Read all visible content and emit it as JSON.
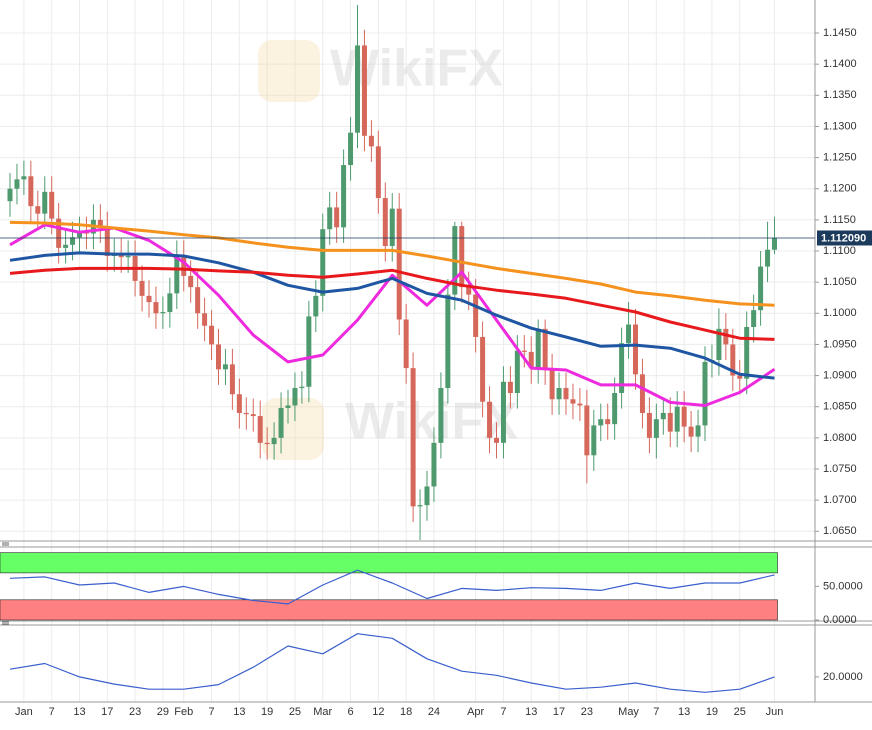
{
  "watermark": "WikiFX",
  "chart_data": [
    {
      "type": "candlestick",
      "categories": [
        "Dec 30",
        "Dec 31",
        "Jan 1",
        "Jan 2",
        "Jan 3",
        "Jan 6",
        "Jan 7",
        "Jan 8",
        "Jan 9",
        "Jan 10",
        "Jan 13",
        "Jan 14",
        "Jan 15",
        "Jan 16",
        "Jan 17",
        "Jan 20",
        "Jan 21",
        "Jan 22",
        "Jan 23",
        "Jan 24",
        "Jan 27",
        "Jan 28",
        "Jan 29",
        "Jan 30",
        "Jan 31",
        "Feb 3",
        "Feb 4",
        "Feb 5",
        "Feb 6",
        "Feb 7",
        "Feb 10",
        "Feb 11",
        "Feb 12",
        "Feb 13",
        "Feb 14",
        "Feb 17",
        "Feb 18",
        "Feb 19",
        "Feb 20",
        "Feb 21",
        "Feb 24",
        "Feb 25",
        "Feb 26",
        "Feb 27",
        "Feb 28",
        "Mar 2",
        "Mar 3",
        "Mar 4",
        "Mar 5",
        "Mar 6",
        "Mar 9",
        "Mar 10",
        "Mar 11",
        "Mar 12",
        "Mar 13",
        "Mar 16",
        "Mar 17",
        "Mar 18",
        "Mar 19",
        "Mar 20",
        "Mar 23",
        "Mar 24",
        "Mar 25",
        "Mar 26",
        "Mar 27",
        "Mar 30",
        "Mar 31",
        "Apr 1",
        "Apr 2",
        "Apr 3",
        "Apr 6",
        "Apr 7",
        "Apr 8",
        "Apr 9",
        "Apr 10",
        "Apr 13",
        "Apr 14",
        "Apr 15",
        "Apr 16",
        "Apr 17",
        "Apr 20",
        "Apr 21",
        "Apr 22",
        "Apr 23",
        "Apr 24",
        "Apr 27",
        "Apr 28",
        "Apr 29",
        "Apr 30",
        "May 1",
        "May 4",
        "May 5",
        "May 6",
        "May 7",
        "May 8",
        "May 11",
        "May 12",
        "May 13",
        "May 14",
        "May 15",
        "May 18",
        "May 19",
        "May 20",
        "May 21",
        "May 22",
        "May 25",
        "May 26",
        "May 27",
        "May 28",
        "May 29",
        "Jun 1"
      ],
      "open": [
        1.118,
        1.12,
        1.1215,
        1.122,
        1.1172,
        1.116,
        1.1195,
        1.1152,
        1.1105,
        1.111,
        1.1122,
        1.113,
        1.1128,
        1.115,
        1.1138,
        1.1092,
        1.1095,
        1.109,
        1.1092,
        1.1052,
        1.1028,
        1.1018,
        1.1,
        1.1002,
        1.1032,
        1.1092,
        1.106,
        1.1042,
        1.1,
        1.098,
        1.095,
        1.091,
        1.0918,
        1.087,
        1.084,
        1.0838,
        1.0835,
        1.0792,
        1.079,
        1.08,
        1.0848,
        1.0852,
        1.088,
        1.0882,
        1.0995,
        1.1028,
        1.1135,
        1.117,
        1.1138,
        1.1238,
        1.129,
        1.143,
        1.1285,
        1.1268,
        1.1185,
        1.1108,
        1.1168,
        1.099,
        1.0912,
        1.069,
        1.0692,
        1.0722,
        1.0792,
        1.088,
        1.103,
        1.114,
        1.1042,
        1.103,
        1.0962,
        1.0858,
        1.08,
        1.0792,
        1.089,
        1.0872,
        1.094,
        1.0938,
        1.0912,
        1.0975,
        1.091,
        1.0862,
        1.088,
        1.0862,
        1.0855,
        1.0852,
        1.0772,
        1.082,
        1.083,
        1.0822,
        1.0872,
        1.0952,
        1.0982,
        1.0902,
        1.084,
        1.08,
        1.083,
        1.084,
        1.081,
        1.085,
        1.0818,
        1.0802,
        1.082,
        1.0922,
        1.0925,
        1.0975,
        1.095,
        1.09,
        1.0895,
        1.0978,
        1.1005,
        1.1075,
        1.1102
      ],
      "high": [
        1.1225,
        1.124,
        1.1245,
        1.1245,
        1.1197,
        1.122,
        1.122,
        1.1177,
        1.1135,
        1.1147,
        1.1155,
        1.1155,
        1.1175,
        1.1175,
        1.1163,
        1.112,
        1.112,
        1.1117,
        1.1117,
        1.1077,
        1.1053,
        1.1043,
        1.1027,
        1.1057,
        1.1117,
        1.1117,
        1.1085,
        1.1067,
        1.1025,
        1.1005,
        1.0975,
        1.0943,
        1.0943,
        1.0895,
        1.0865,
        1.0863,
        1.086,
        1.0817,
        1.0825,
        1.0873,
        1.0877,
        1.0905,
        1.0907,
        1.102,
        1.1053,
        1.116,
        1.1195,
        1.1195,
        1.1263,
        1.1315,
        1.1495,
        1.1455,
        1.131,
        1.1293,
        1.121,
        1.1193,
        1.1193,
        1.1015,
        1.0937,
        1.0717,
        1.0747,
        1.0817,
        1.0905,
        1.1055,
        1.1147,
        1.1147,
        1.1067,
        1.1055,
        1.0987,
        1.0883,
        1.0825,
        1.0915,
        1.0915,
        1.0965,
        1.0965,
        1.0963,
        1.099,
        1.099,
        1.0935,
        1.0905,
        1.0905,
        1.0887,
        1.088,
        1.0877,
        1.0845,
        1.0855,
        1.0855,
        1.0897,
        1.0977,
        1.1018,
        1.1007,
        1.0927,
        1.0865,
        1.0855,
        1.0865,
        1.0865,
        1.0875,
        1.0875,
        1.0843,
        1.0845,
        1.0947,
        1.095,
        1.1008,
        1.1,
        1.0975,
        1.0925,
        1.1003,
        1.103,
        1.11,
        1.1147,
        1.1155
      ],
      "low": [
        1.1155,
        1.1175,
        1.119,
        1.1147,
        1.1135,
        1.1135,
        1.1127,
        1.108,
        1.108,
        1.1085,
        1.1097,
        1.1103,
        1.1103,
        1.1113,
        1.1067,
        1.1067,
        1.1065,
        1.1065,
        1.1027,
        1.1003,
        1.0993,
        1.0975,
        1.0975,
        1.0977,
        1.1007,
        1.1035,
        1.1017,
        1.0975,
        1.0955,
        1.0925,
        1.0885,
        1.0885,
        1.0845,
        1.0815,
        1.0813,
        1.081,
        1.0767,
        1.0765,
        1.0765,
        1.0775,
        1.0823,
        1.0827,
        1.0855,
        1.0857,
        1.097,
        1.1003,
        1.111,
        1.1113,
        1.1113,
        1.1213,
        1.1265,
        1.126,
        1.1243,
        1.116,
        1.1083,
        1.1083,
        1.0965,
        1.0887,
        1.0665,
        1.0636,
        1.0667,
        1.0697,
        1.0767,
        1.0855,
        1.1005,
        1.1017,
        1.1005,
        1.0937,
        1.0833,
        1.0775,
        1.0767,
        1.0767,
        1.0847,
        1.0847,
        1.0913,
        1.0887,
        1.0887,
        1.0885,
        1.0837,
        1.0837,
        1.0837,
        1.083,
        1.0827,
        1.0727,
        1.0747,
        1.0795,
        1.0797,
        1.0797,
        1.0847,
        1.0927,
        1.0877,
        1.0815,
        1.0775,
        1.0767,
        1.0805,
        1.0785,
        1.0785,
        1.0793,
        1.0777,
        1.0777,
        1.0795,
        1.0897,
        1.09,
        1.0925,
        1.0875,
        1.087,
        1.087,
        1.0953,
        1.098,
        1.105,
        1.1095
      ],
      "close": [
        1.12,
        1.1215,
        1.122,
        1.1172,
        1.116,
        1.1195,
        1.1152,
        1.1105,
        1.111,
        1.1122,
        1.113,
        1.1128,
        1.115,
        1.1138,
        1.1092,
        1.1095,
        1.109,
        1.1092,
        1.1052,
        1.1028,
        1.1018,
        1.1,
        1.1002,
        1.1032,
        1.1092,
        1.106,
        1.1042,
        1.1,
        1.098,
        1.095,
        1.091,
        1.0918,
        1.087,
        1.084,
        1.0838,
        1.0835,
        1.0792,
        1.079,
        1.08,
        1.0848,
        1.0852,
        1.088,
        1.0882,
        1.0995,
        1.1028,
        1.1135,
        1.117,
        1.1138,
        1.1238,
        1.129,
        1.143,
        1.1285,
        1.1268,
        1.1185,
        1.1108,
        1.1168,
        1.099,
        1.0912,
        1.069,
        1.0692,
        1.0722,
        1.0792,
        1.088,
        1.103,
        1.114,
        1.1042,
        1.103,
        1.0962,
        1.0858,
        1.08,
        1.0792,
        1.089,
        1.0872,
        1.094,
        1.0938,
        1.0912,
        1.0975,
        1.091,
        1.0862,
        1.088,
        1.0862,
        1.0855,
        1.0852,
        1.0772,
        1.082,
        1.083,
        1.0822,
        1.0872,
        1.0952,
        1.0982,
        1.0902,
        1.084,
        1.08,
        1.083,
        1.084,
        1.081,
        1.085,
        1.0818,
        1.0802,
        1.082,
        1.0922,
        1.0925,
        1.0975,
        1.095,
        1.09,
        1.0895,
        1.0978,
        1.1005,
        1.1075,
        1.1102,
        1.1121
      ],
      "up_color": "#4e9a6e",
      "down_color": "#d5685b",
      "series": [
        {
          "color": "#ee2ade",
          "x": [
            "Dec 30",
            "Jan 6",
            "Jan 13",
            "Jan 20",
            "Jan 27",
            "Feb 3",
            "Feb 10",
            "Feb 17",
            "Feb 24",
            "Mar 2",
            "Mar 9",
            "Mar 16",
            "Mar 23",
            "Mar 30",
            "Apr 6",
            "Apr 13",
            "Apr 20",
            "Apr 27",
            "May 4",
            "May 11",
            "May 18",
            "May 25",
            "Jun 1"
          ],
          "values": [
            1.111,
            1.1142,
            1.113,
            1.1137,
            1.1117,
            1.1082,
            1.1029,
            1.0965,
            1.0922,
            1.0933,
            1.0989,
            1.1061,
            1.1013,
            1.1066,
            1.0989,
            1.0912,
            1.0909,
            1.0885,
            1.0885,
            1.0857,
            1.0852,
            1.0873,
            1.091
          ]
        },
        {
          "color": "#1f56a3",
          "x": [
            "Dec 30",
            "Jan 6",
            "Jan 13",
            "Jan 20",
            "Jan 27",
            "Feb 3",
            "Feb 10",
            "Feb 17",
            "Feb 24",
            "Mar 2",
            "Mar 9",
            "Mar 16",
            "Mar 23",
            "Mar 30",
            "Apr 6",
            "Apr 13",
            "Apr 20",
            "Apr 27",
            "May 4",
            "May 11",
            "May 18",
            "May 25",
            "Jun 1"
          ],
          "values": [
            1.1085,
            1.1093,
            1.1097,
            1.1095,
            1.1095,
            1.1092,
            1.1081,
            1.1066,
            1.1045,
            1.1034,
            1.104,
            1.1056,
            1.1032,
            1.1021,
            1.0997,
            1.0976,
            1.0962,
            1.0947,
            1.0949,
            1.0944,
            1.0928,
            1.0902,
            1.0896
          ]
        },
        {
          "color": "#e8191c",
          "x": [
            "Dec 30",
            "Jan 6",
            "Jan 13",
            "Jan 20",
            "Jan 27",
            "Feb 3",
            "Feb 10",
            "Feb 17",
            "Feb 24",
            "Mar 2",
            "Mar 9",
            "Mar 16",
            "Mar 23",
            "Mar 30",
            "Apr 6",
            "Apr 13",
            "Apr 20",
            "Apr 27",
            "May 4",
            "May 11",
            "May 18",
            "May 25",
            "Jun 1"
          ],
          "values": [
            1.1064,
            1.1069,
            1.1072,
            1.1072,
            1.1072,
            1.1071,
            1.1068,
            1.1066,
            1.1061,
            1.1058,
            1.1063,
            1.1069,
            1.1056,
            1.1045,
            1.1037,
            1.1031,
            1.1024,
            1.1013,
            1.1002,
            1.0986,
            1.0973,
            1.096,
            1.0958
          ]
        },
        {
          "color": "#f5921e",
          "x": [
            "Dec 30",
            "Jan 6",
            "Jan 13",
            "Jan 20",
            "Jan 27",
            "Feb 3",
            "Feb 10",
            "Feb 17",
            "Feb 24",
            "Mar 2",
            "Mar 9",
            "Mar 16",
            "Mar 23",
            "Mar 30",
            "Apr 6",
            "Apr 13",
            "Apr 20",
            "Apr 27",
            "May 4",
            "May 11",
            "May 18",
            "May 25",
            "Jun 1"
          ],
          "values": [
            1.1146,
            1.1145,
            1.1142,
            1.1137,
            1.1132,
            1.1126,
            1.1121,
            1.1113,
            1.1106,
            1.1101,
            1.1101,
            1.1101,
            1.1092,
            1.1082,
            1.1072,
            1.1064,
            1.1056,
            1.1047,
            1.1034,
            1.1028,
            1.1021,
            1.1015,
            1.1013
          ]
        }
      ],
      "ylim": [
        1.0636,
        1.1503
      ],
      "yticks": [
        {
          "value": 1.145,
          "label": "1.1450"
        },
        {
          "value": 1.14,
          "label": "1.1400"
        },
        {
          "value": 1.135,
          "label": "1.1350"
        },
        {
          "value": 1.13,
          "label": "1.1300"
        },
        {
          "value": 1.125,
          "label": "1.1250"
        },
        {
          "value": 1.12,
          "label": "1.1200"
        },
        {
          "value": 1.115,
          "label": "1.1150"
        },
        {
          "value": 1.11,
          "label": "1.1100"
        },
        {
          "value": 1.105,
          "label": "1.1050"
        },
        {
          "value": 1.1,
          "label": "1.1000"
        },
        {
          "value": 1.095,
          "label": "1.0950"
        },
        {
          "value": 1.09,
          "label": "1.0900"
        },
        {
          "value": 1.085,
          "label": "1.0850"
        },
        {
          "value": 1.08,
          "label": "1.0800"
        },
        {
          "value": 1.075,
          "label": "1.0750"
        },
        {
          "value": 1.07,
          "label": "1.0700"
        },
        {
          "value": 1.065,
          "label": "1.0650"
        }
      ],
      "xticks": [
        {
          "value": "Jan 1",
          "label": "Jan"
        },
        {
          "value": "Jan 7",
          "label": "7"
        },
        {
          "value": "Jan 13",
          "label": "13"
        },
        {
          "value": "Jan 17",
          "label": "17"
        },
        {
          "value": "Jan 23",
          "label": "23"
        },
        {
          "value": "Jan 29",
          "label": "29"
        },
        {
          "value": "Feb 3",
          "label": "Feb"
        },
        {
          "value": "Feb 7",
          "label": "7"
        },
        {
          "value": "Feb 13",
          "label": "13"
        },
        {
          "value": "Feb 19",
          "label": "19"
        },
        {
          "value": "Feb 25",
          "label": "25"
        },
        {
          "value": "Mar 2",
          "label": "Mar"
        },
        {
          "value": "Mar 6",
          "label": "6"
        },
        {
          "value": "Mar 12",
          "label": "12"
        },
        {
          "value": "Mar 18",
          "label": "18"
        },
        {
          "value": "Mar 24",
          "label": "24"
        },
        {
          "value": "Apr 1",
          "label": "Apr"
        },
        {
          "value": "Apr 7",
          "label": "7"
        },
        {
          "value": "Apr 13",
          "label": "13"
        },
        {
          "value": "Apr 17",
          "label": "17"
        },
        {
          "value": "Apr 23",
          "label": "23"
        },
        {
          "value": "May 1",
          "label": "May"
        },
        {
          "value": "May 7",
          "label": "7"
        },
        {
          "value": "May 13",
          "label": "13"
        },
        {
          "value": "May 19",
          "label": "19"
        },
        {
          "value": "May 25",
          "label": "25"
        },
        {
          "value": "Jun 1",
          "label": "Jun"
        }
      ],
      "last_price": {
        "value": 1.11209,
        "label": "1.112090",
        "color": "#1b3a5c"
      },
      "grid": true
    },
    {
      "type": "line",
      "ylim": [
        0,
        107
      ],
      "yticks": [
        {
          "value": 50,
          "label": "50.0000"
        },
        {
          "value": 0,
          "label": "0.0000"
        }
      ],
      "bands": [
        {
          "from": 70,
          "to": 100,
          "color": "#66ff66"
        },
        {
          "from": 0,
          "to": 30,
          "color": "#ff8080"
        }
      ],
      "series": [
        {
          "color": "#3a5fcd",
          "x": [
            "Dec 30",
            "Jan 6",
            "Jan 13",
            "Jan 20",
            "Jan 27",
            "Feb 3",
            "Feb 10",
            "Feb 17",
            "Feb 24",
            "Mar 2",
            "Mar 9",
            "Mar 16",
            "Mar 23",
            "Mar 30",
            "Apr 6",
            "Apr 13",
            "Apr 20",
            "Apr 27",
            "May 4",
            "May 11",
            "May 18",
            "May 25",
            "Jun 1"
          ],
          "values": [
            62,
            64,
            52,
            55,
            41,
            50,
            38,
            29,
            24,
            52,
            74,
            55,
            32,
            47,
            44,
            48,
            47,
            44,
            55,
            47,
            55,
            55,
            67
          ]
        }
      ]
    },
    {
      "type": "line",
      "ylim": [
        5,
        53
      ],
      "yticks": [
        {
          "value": 20,
          "label": "20.0000"
        }
      ],
      "series": [
        {
          "color": "#3a5fcd",
          "x": [
            "Dec 30",
            "Jan 6",
            "Jan 13",
            "Jan 20",
            "Jan 27",
            "Feb 3",
            "Feb 10",
            "Feb 17",
            "Feb 24",
            "Mar 2",
            "Mar 9",
            "Mar 16",
            "Mar 23",
            "Mar 30",
            "Apr 6",
            "Apr 13",
            "Apr 20",
            "Apr 27",
            "May 4",
            "May 11",
            "May 18",
            "May 25",
            "Jun 1"
          ],
          "values": [
            25,
            28.7,
            20,
            15.3,
            12,
            12,
            15,
            26.3,
            40,
            35,
            48,
            45,
            31.7,
            23.7,
            21,
            16,
            12,
            13.3,
            16,
            12,
            10,
            12,
            20
          ]
        }
      ]
    }
  ]
}
